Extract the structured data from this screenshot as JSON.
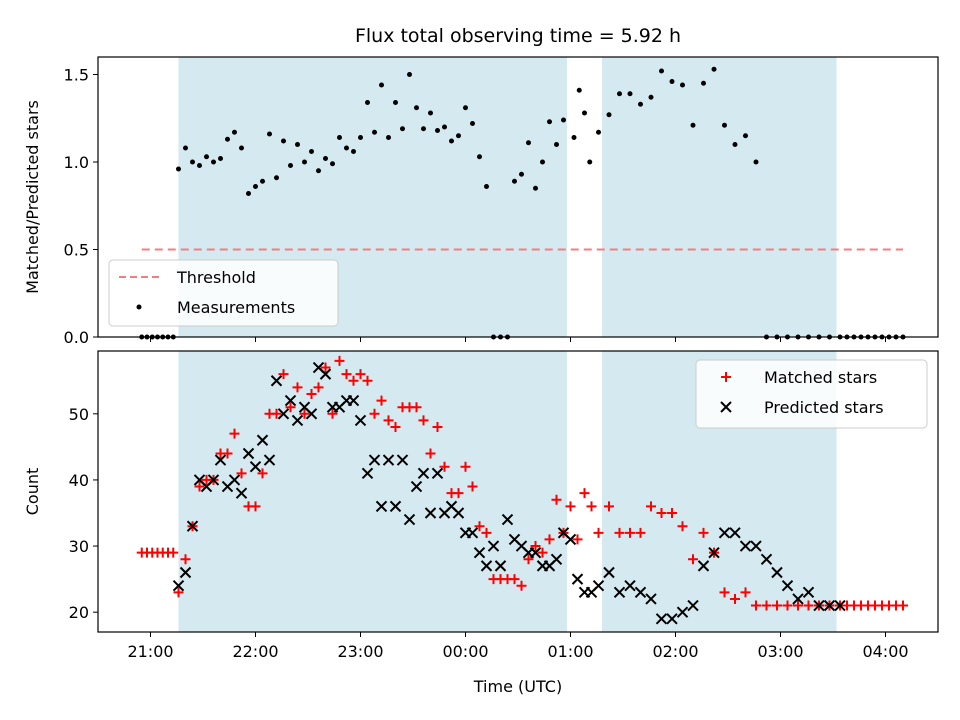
{
  "chart_data": {
    "title": "Flux total observing time = 5.92 h",
    "xlabel": "Time (UTC)",
    "x_ticks": [
      "21:00",
      "22:00",
      "23:00",
      "00:00",
      "01:00",
      "02:00",
      "03:00",
      "04:00"
    ],
    "shaded_intervals": [
      [
        "21:16",
        "00:58"
      ],
      [
        "01:18",
        "03:32"
      ]
    ],
    "shade_color": "#d4eaf0",
    "panels": [
      {
        "type": "scatter",
        "ylabel": "Matched/Predicted stars",
        "ylim": [
          0,
          1.6
        ],
        "yticks": [
          0.0,
          0.5,
          1.0,
          1.5
        ],
        "legend": {
          "position": "lower-left",
          "entries": [
            "Threshold",
            "Measurements"
          ]
        },
        "threshold": {
          "name": "Threshold",
          "value": 0.5,
          "x_range": [
            "20:55",
            "04:10"
          ],
          "color": "#f08080"
        },
        "series": [
          {
            "name": "Measurements",
            "color": "#000000",
            "x": [
              "20:55",
              "20:58",
              "21:01",
              "21:04",
              "21:07",
              "21:10",
              "21:13",
              "21:16",
              "21:20",
              "21:24",
              "21:28",
              "21:32",
              "21:36",
              "21:40",
              "21:44",
              "21:48",
              "21:52",
              "21:56",
              "22:00",
              "22:04",
              "22:08",
              "22:12",
              "22:16",
              "22:20",
              "22:24",
              "22:28",
              "22:32",
              "22:36",
              "22:40",
              "22:44",
              "22:48",
              "22:52",
              "22:56",
              "23:00",
              "23:04",
              "23:08",
              "23:12",
              "23:16",
              "23:20",
              "23:24",
              "23:28",
              "23:32",
              "23:36",
              "23:40",
              "23:44",
              "23:48",
              "23:52",
              "23:56",
              "00:00",
              "00:04",
              "00:08",
              "00:12",
              "00:16",
              "00:20",
              "00:24",
              "00:28",
              "00:32",
              "00:36",
              "00:40",
              "00:44",
              "00:48",
              "00:52",
              "00:56",
              "01:02",
              "01:05",
              "01:08",
              "01:11",
              "01:16",
              "01:22",
              "01:28",
              "01:34",
              "01:40",
              "01:46",
              "01:52",
              "01:58",
              "02:04",
              "02:10",
              "02:16",
              "02:22",
              "02:28",
              "02:34",
              "02:40",
              "02:46",
              "02:52",
              "02:58",
              "03:04",
              "03:10",
              "03:16",
              "03:22",
              "03:28",
              "03:34",
              "03:38",
              "03:42",
              "03:46",
              "03:50",
              "03:54",
              "03:58",
              "04:02",
              "04:06",
              "04:10"
            ],
            "y": [
              0,
              0,
              0,
              0,
              0,
              0,
              0,
              0.96,
              1.08,
              1.0,
              0.98,
              1.03,
              1.0,
              1.02,
              1.13,
              1.17,
              1.08,
              0.82,
              0.86,
              0.89,
              1.16,
              0.91,
              1.12,
              0.98,
              1.1,
              1.0,
              1.06,
              0.95,
              1.02,
              0.99,
              1.14,
              1.08,
              1.06,
              1.14,
              1.34,
              1.17,
              1.44,
              1.14,
              1.34,
              1.19,
              1.5,
              1.31,
              1.19,
              1.28,
              1.18,
              1.2,
              1.12,
              1.15,
              1.31,
              1.22,
              1.03,
              0.86,
              0,
              0,
              0,
              0.89,
              0.93,
              1.11,
              0.85,
              1.0,
              1.23,
              1.1,
              1.24,
              1.14,
              1.41,
              1.28,
              1.0,
              1.17,
              1.27,
              1.39,
              1.39,
              1.33,
              1.37,
              1.52,
              1.46,
              1.44,
              1.21,
              1.45,
              1.53,
              1.21,
              1.1,
              1.15,
              1.0,
              0,
              0,
              0,
              0,
              0,
              0,
              0,
              0,
              0,
              0,
              0,
              0,
              0,
              0,
              0,
              0,
              0
            ]
          }
        ]
      },
      {
        "type": "scatter",
        "ylabel": "Count",
        "ylim": [
          17,
          59.5
        ],
        "yticks": [
          20,
          30,
          40,
          50
        ],
        "legend": {
          "position": "top-right",
          "entries": [
            "Matched stars",
            "Predicted stars"
          ]
        },
        "series": [
          {
            "name": "Matched stars",
            "marker": "plus",
            "color": "#ff0000",
            "x": [
              "20:55",
              "20:58",
              "21:01",
              "21:04",
              "21:07",
              "21:10",
              "21:13",
              "21:16",
              "21:20",
              "21:24",
              "21:28",
              "21:32",
              "21:36",
              "21:40",
              "21:44",
              "21:48",
              "21:52",
              "21:56",
              "22:00",
              "22:04",
              "22:08",
              "22:12",
              "22:16",
              "22:20",
              "22:24",
              "22:28",
              "22:32",
              "22:36",
              "22:40",
              "22:44",
              "22:48",
              "22:52",
              "22:56",
              "23:00",
              "23:04",
              "23:08",
              "23:12",
              "23:16",
              "23:20",
              "23:24",
              "23:28",
              "23:32",
              "23:36",
              "23:40",
              "23:44",
              "23:48",
              "23:52",
              "23:56",
              "00:00",
              "00:04",
              "00:08",
              "00:12",
              "00:16",
              "00:20",
              "00:24",
              "00:28",
              "00:32",
              "00:36",
              "00:40",
              "00:44",
              "00:48",
              "00:52",
              "00:56",
              "01:00",
              "01:04",
              "01:08",
              "01:12",
              "01:16",
              "01:22",
              "01:28",
              "01:34",
              "01:40",
              "01:46",
              "01:52",
              "01:58",
              "02:04",
              "02:10",
              "02:16",
              "02:22",
              "02:28",
              "02:34",
              "02:40",
              "02:46",
              "02:52",
              "02:58",
              "03:04",
              "03:10",
              "03:16",
              "03:22",
              "03:28",
              "03:34",
              "03:38",
              "03:42",
              "03:46",
              "03:50",
              "03:54",
              "03:58",
              "04:02",
              "04:06",
              "04:10"
            ],
            "y": [
              29,
              29,
              29,
              29,
              29,
              29,
              29,
              23,
              28,
              33,
              39,
              40,
              40,
              44,
              44,
              47,
              41,
              36,
              36,
              41,
              50,
              50,
              56,
              51,
              54,
              50,
              53,
              54,
              57,
              50,
              58,
              56,
              55,
              56,
              55,
              50,
              52,
              49,
              48,
              51,
              51,
              51,
              49,
              44,
              48,
              42,
              38,
              38,
              42,
              39,
              33,
              32,
              25,
              25,
              25,
              25,
              24,
              28,
              30,
              29,
              31,
              37,
              32,
              36,
              31,
              38,
              36,
              32,
              36,
              32,
              32,
              32,
              36,
              35,
              35,
              33,
              28,
              32,
              29,
              23,
              22,
              23,
              21,
              21,
              21,
              21,
              21,
              21,
              21,
              21,
              21,
              21,
              21,
              21,
              21,
              21,
              21,
              21,
              21,
              21
            ]
          },
          {
            "name": "Predicted stars",
            "marker": "x",
            "color": "#000000",
            "x": [
              "21:16",
              "21:20",
              "21:24",
              "21:28",
              "21:32",
              "21:36",
              "21:40",
              "21:44",
              "21:48",
              "21:52",
              "21:56",
              "22:00",
              "22:04",
              "22:08",
              "22:12",
              "22:16",
              "22:20",
              "22:24",
              "22:28",
              "22:32",
              "22:36",
              "22:40",
              "22:44",
              "22:48",
              "22:52",
              "22:56",
              "23:00",
              "23:04",
              "23:08",
              "23:12",
              "23:16",
              "23:20",
              "23:24",
              "23:28",
              "23:32",
              "23:36",
              "23:40",
              "23:44",
              "23:48",
              "23:52",
              "23:56",
              "00:00",
              "00:04",
              "00:08",
              "00:12",
              "00:16",
              "00:20",
              "00:24",
              "00:28",
              "00:32",
              "00:36",
              "00:40",
              "00:44",
              "00:48",
              "00:52",
              "00:56",
              "01:00",
              "01:04",
              "01:08",
              "01:12",
              "01:16",
              "01:22",
              "01:28",
              "01:34",
              "01:40",
              "01:46",
              "01:52",
              "01:58",
              "02:04",
              "02:10",
              "02:16",
              "02:22",
              "02:28",
              "02:34",
              "02:40",
              "02:46",
              "02:52",
              "02:58",
              "03:04",
              "03:10",
              "03:16",
              "03:22",
              "03:28",
              "03:34"
            ],
            "y": [
              24,
              26,
              33,
              40,
              39,
              40,
              43,
              39,
              40,
              38,
              44,
              42,
              46,
              43,
              55,
              50,
              52,
              49,
              51,
              50,
              57,
              56,
              51,
              51,
              52,
              52,
              49,
              41,
              43,
              36,
              43,
              36,
              43,
              34,
              39,
              41,
              35,
              41,
              35,
              36,
              35,
              32,
              32,
              29,
              27,
              30,
              27,
              34,
              31,
              30,
              29,
              29,
              27,
              27,
              28,
              32,
              31,
              25,
              23,
              23,
              24,
              26,
              23,
              24,
              23,
              22,
              19,
              19,
              20,
              21,
              27,
              29,
              32,
              32,
              30,
              30,
              28,
              26,
              24,
              22,
              23,
              21,
              21,
              21
            ]
          }
        ]
      }
    ]
  }
}
